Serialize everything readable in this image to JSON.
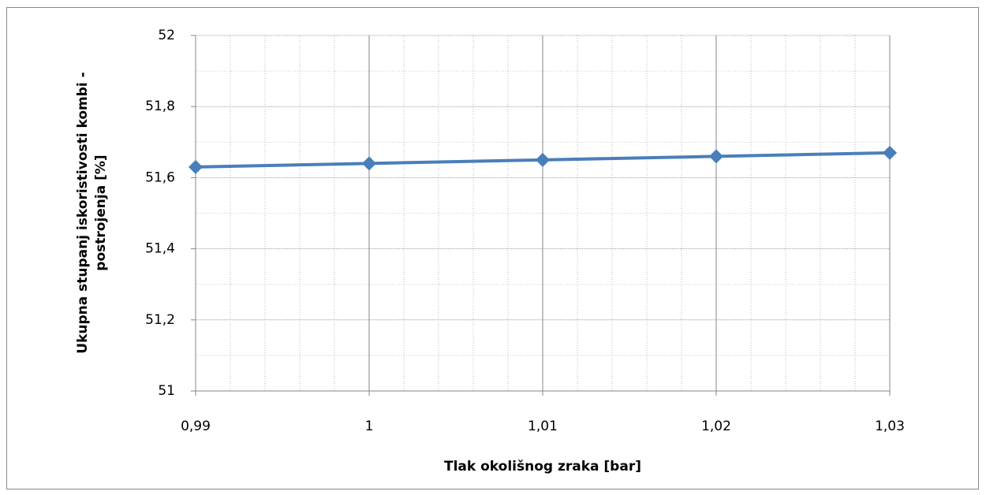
{
  "chart_data": {
    "type": "line",
    "xlabel": "Tlak okolišnog zraka [bar]",
    "ylabel": [
      "Ukupna stupanj iskoristivosti kombi -",
      "postrojenja [%]"
    ],
    "x": [
      0.99,
      1,
      1.01,
      1.02,
      1.03
    ],
    "series": [
      {
        "name": "Ukupna stupanj iskoristivosti",
        "color": "#4a7ebb",
        "values": [
          51.63,
          51.64,
          51.65,
          51.66,
          51.67
        ]
      }
    ],
    "xlim": [
      0.99,
      1.03
    ],
    "ylim": [
      51,
      52
    ],
    "xticks": [
      {
        "value": 0.99,
        "label": "0,99"
      },
      1,
      {
        "value": 1.01,
        "label": "1,01"
      },
      {
        "value": 1.02,
        "label": "1,02"
      },
      {
        "value": 1.03,
        "label": "1,03"
      }
    ],
    "yticks": [
      51,
      {
        "value": 51.2,
        "label": "51,2"
      },
      {
        "value": 51.4,
        "label": "51,4"
      },
      {
        "value": 51.6,
        "label": "51,6"
      },
      {
        "value": 51.8,
        "label": "51,8"
      },
      52
    ],
    "xminorticks": [
      0.992,
      0.994,
      0.996,
      0.998,
      1.002,
      1.004,
      1.006,
      1.008,
      1.012,
      1.014,
      1.016,
      1.018,
      1.022,
      1.024,
      1.026,
      1.028
    ],
    "yminorticks": [
      51.1,
      51.3,
      51.5,
      51.7,
      51.9
    ],
    "grid": true
  }
}
